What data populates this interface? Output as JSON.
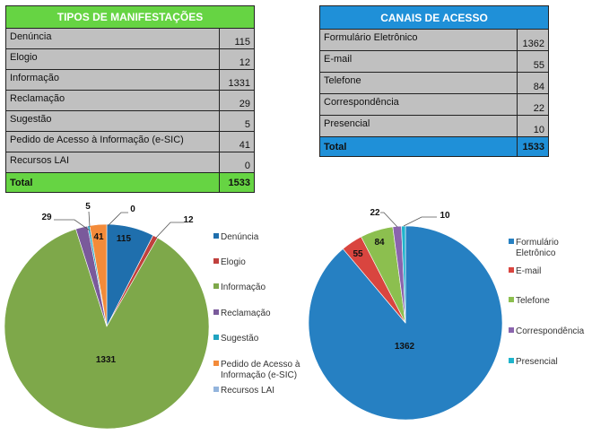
{
  "tables": {
    "manifestacoes": {
      "title": "TIPOS DE MANIFESTAÇÕES",
      "rows": [
        {
          "label": "Denúncia",
          "value": "115"
        },
        {
          "label": "Elogio",
          "value": "12"
        },
        {
          "label": "Informação",
          "value": "1331"
        },
        {
          "label": "Reclamação",
          "value": "29"
        },
        {
          "label": "Sugestão",
          "value": "5"
        },
        {
          "label": "Pedido de Acesso à Informação (e-SIC)",
          "value": "41"
        },
        {
          "label": "Recursos LAI",
          "value": "0"
        }
      ],
      "total_label": "Total",
      "total_value": "1533",
      "header_color": "#66d443"
    },
    "canais": {
      "title": "CANAIS DE ACESSO",
      "rows": [
        {
          "label": "Formulário Eletrônico",
          "value": "1362"
        },
        {
          "label": "E-mail",
          "value": "55"
        },
        {
          "label": "Telefone",
          "value": "84"
        },
        {
          "label": "Correspondência",
          "value": "22"
        },
        {
          "label": "Presencial",
          "value": "10"
        }
      ],
      "total_label": "Total",
      "total_value": "1533",
      "header_color": "#1f90d8"
    }
  },
  "chart_data": [
    {
      "type": "pie",
      "categories": [
        "Denúncia",
        "Elogio",
        "Informação",
        "Reclamação",
        "Sugestão",
        "Pedido de Acesso à Informação (e-SIC)",
        "Recursos LAI"
      ],
      "values": [
        115,
        12,
        1331,
        29,
        5,
        41,
        0
      ],
      "data_labels": [
        "115",
        "12",
        "1331",
        "29",
        "5",
        "41",
        "0"
      ],
      "colors": [
        "#1f6fad",
        "#c0403d",
        "#7ea84a",
        "#7a5a9b",
        "#1fa3c0",
        "#f38b3a",
        "#93b4dc"
      ],
      "legend_position": "right",
      "start_angle": "top, clockwise"
    },
    {
      "type": "pie",
      "categories": [
        "Formulário Eletrônico",
        "E-mail",
        "Telefone",
        "Correspondência",
        "Presencial"
      ],
      "values": [
        1362,
        55,
        84,
        22,
        10
      ],
      "data_labels": [
        "1362",
        "55",
        "84",
        "22",
        "10"
      ],
      "colors": [
        "#2680c2",
        "#d9453f",
        "#8cbf4f",
        "#8a64ad",
        "#1fb4cc"
      ],
      "legend_position": "right",
      "start_angle": "top, clockwise"
    }
  ]
}
